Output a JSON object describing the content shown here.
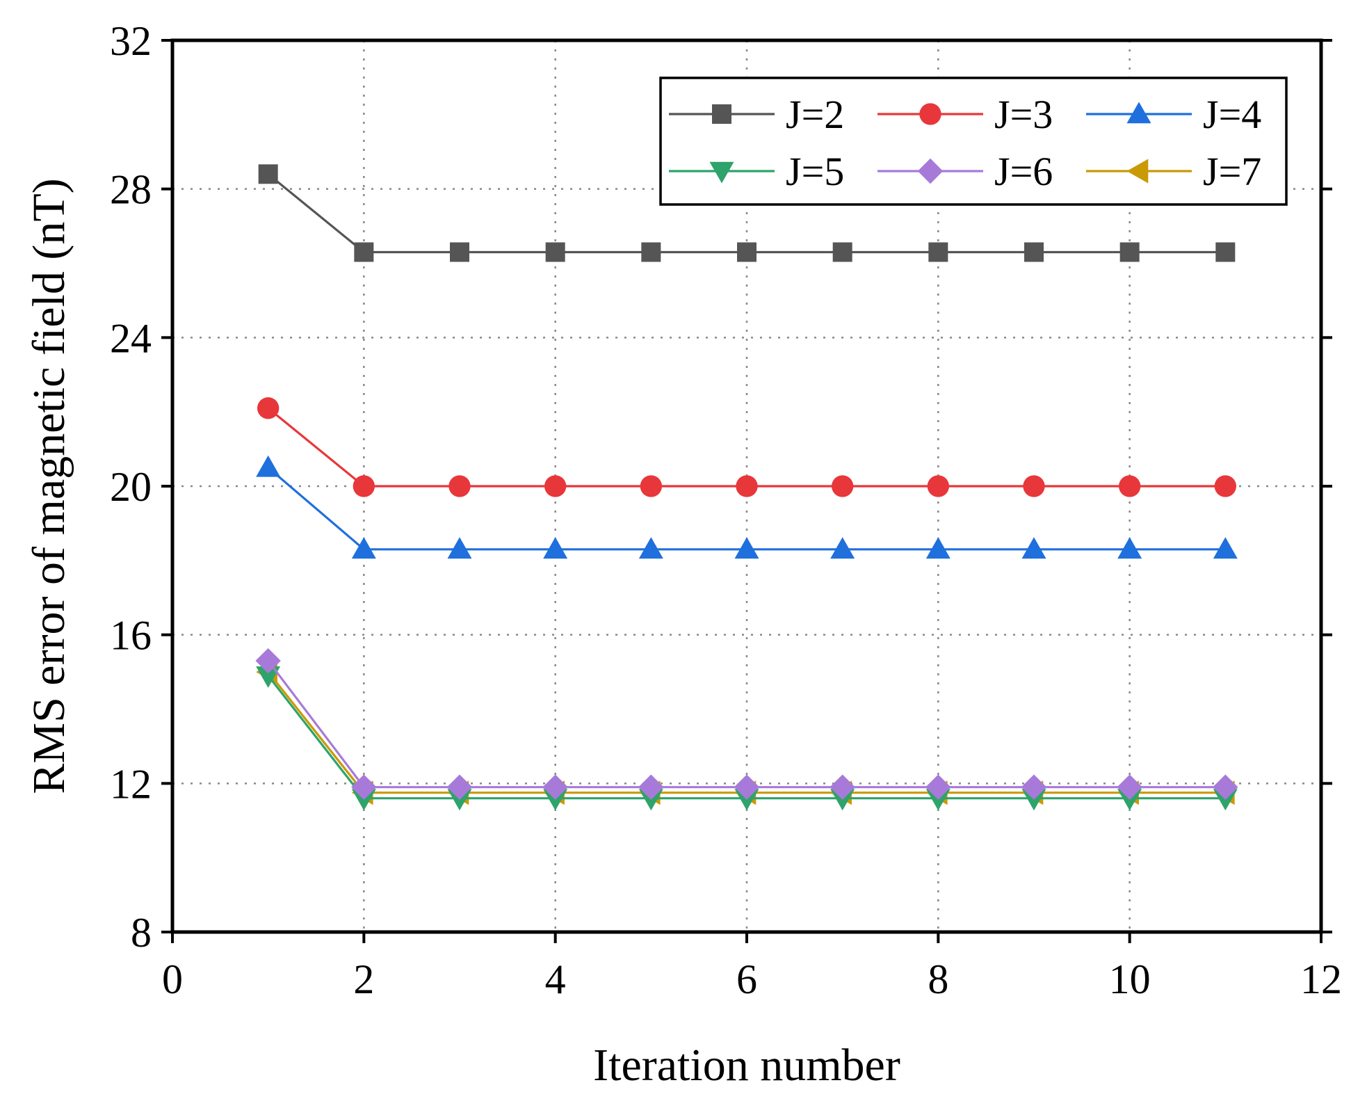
{
  "chart_data": {
    "type": "line",
    "title": "",
    "xlabel": "Iteration number",
    "ylabel": "RMS error of magnetic field (nT)",
    "xlim": [
      0,
      12
    ],
    "ylim": [
      8,
      32
    ],
    "xticks": [
      0,
      2,
      4,
      6,
      8,
      10,
      12
    ],
    "yticks": [
      8,
      12,
      16,
      20,
      24,
      28,
      32
    ],
    "grid": true,
    "legend_position": "top-right",
    "x": [
      1,
      2,
      3,
      4,
      5,
      6,
      7,
      8,
      9,
      10,
      11
    ],
    "series": [
      {
        "name": "J=2",
        "color": "#555555",
        "marker": "square",
        "values": [
          28.4,
          26.3,
          26.3,
          26.3,
          26.3,
          26.3,
          26.3,
          26.3,
          26.3,
          26.3,
          26.3
        ]
      },
      {
        "name": "J=3",
        "color": "#e8373a",
        "marker": "circle",
        "values": [
          22.1,
          20.0,
          20.0,
          20.0,
          20.0,
          20.0,
          20.0,
          20.0,
          20.0,
          20.0,
          20.0
        ]
      },
      {
        "name": "J=4",
        "color": "#1f6fdd",
        "marker": "triangle-up",
        "values": [
          20.5,
          18.3,
          18.3,
          18.3,
          18.3,
          18.3,
          18.3,
          18.3,
          18.3,
          18.3,
          18.3
        ]
      },
      {
        "name": "J=5",
        "color": "#2ea36a",
        "marker": "triangle-down",
        "values": [
          14.9,
          11.6,
          11.6,
          11.6,
          11.6,
          11.6,
          11.6,
          11.6,
          11.6,
          11.6,
          11.6
        ]
      },
      {
        "name": "J=6",
        "color": "#a77ad9",
        "marker": "diamond",
        "values": [
          15.3,
          11.9,
          11.9,
          11.9,
          11.9,
          11.9,
          11.9,
          11.9,
          11.9,
          11.9,
          11.9
        ]
      },
      {
        "name": "J=7",
        "color": "#c99a06",
        "marker": "triangle-left",
        "values": [
          15.0,
          11.75,
          11.75,
          11.75,
          11.75,
          11.75,
          11.75,
          11.75,
          11.75,
          11.75,
          11.75
        ]
      }
    ]
  }
}
